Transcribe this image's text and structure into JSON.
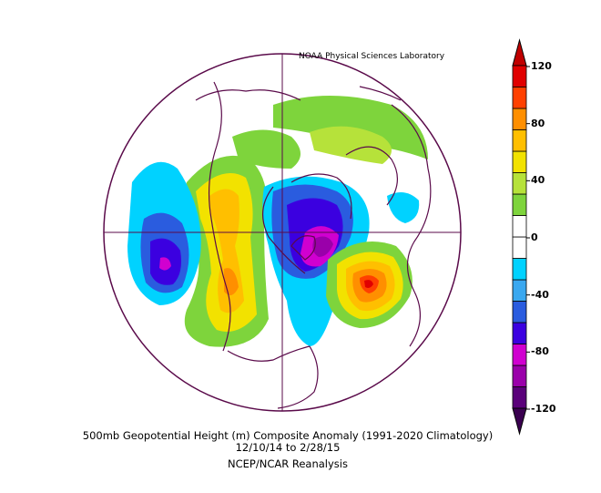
{
  "header": {
    "lab": "NOAA Physical Sciences Laboratory"
  },
  "footer": {
    "title": "500mb Geopotential Height (m) Composite Anomaly (1991-2020 Climatology)",
    "dates": "12/10/14  to 2/28/15",
    "source": "NCEP/NCAR Reanalysis"
  },
  "colorbar": {
    "ticks": [
      "120",
      "80",
      "40",
      "0",
      "-40",
      "-80",
      "-120"
    ],
    "colors": [
      "#5a007a",
      "#9a00aa",
      "#d000d0",
      "#3b00e0",
      "#2a5cdf",
      "#3aa8f0",
      "#00d2ff",
      "#ffffff",
      "#ffffff",
      "#7ed43c",
      "#b6e23a",
      "#f2e200",
      "#ffbf00",
      "#ff8f00",
      "#ff4000",
      "#e00000"
    ]
  },
  "map": {
    "projection": "polar stereographic",
    "anomalies": [
      {
        "region": "North Pacific",
        "sign": "negative",
        "peak": -100
      },
      {
        "region": "Western North America",
        "sign": "positive",
        "peak": 70
      },
      {
        "region": "Hudson Bay / Greenland",
        "sign": "negative",
        "peak": -110
      },
      {
        "region": "North Atlantic",
        "sign": "positive",
        "peak": 120
      },
      {
        "region": "Arctic / Siberia",
        "sign": "positive",
        "peak": 40
      }
    ]
  }
}
